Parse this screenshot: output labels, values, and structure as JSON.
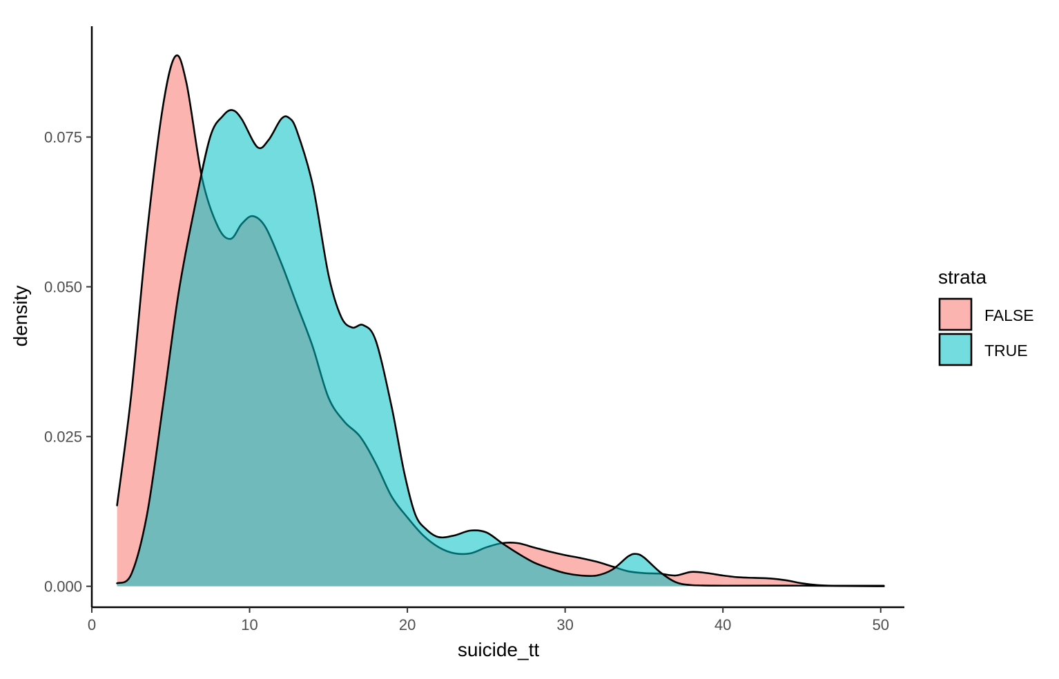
{
  "chart_data": {
    "type": "area",
    "subtype": "density",
    "xlabel": "suicide_tt",
    "ylabel": "density",
    "xlim": [
      0,
      51.5
    ],
    "ylim": [
      -0.0035,
      0.0935
    ],
    "x_ticks": [
      0,
      10,
      20,
      30,
      40,
      50
    ],
    "x_tick_labels": [
      "0",
      "10",
      "20",
      "30",
      "40",
      "50"
    ],
    "y_ticks": [
      0,
      0.025,
      0.05,
      0.075
    ],
    "y_tick_labels": [
      "0.000",
      "0.025",
      "0.050",
      "0.075"
    ],
    "grid": false,
    "legend": {
      "title": "strata",
      "position": "right"
    },
    "series": [
      {
        "name": "FALSE",
        "color": "#F8766D",
        "points": [
          [
            1.6,
            0.0135
          ],
          [
            2.5,
            0.032
          ],
          [
            3.5,
            0.059
          ],
          [
            4.5,
            0.08
          ],
          [
            5.3,
            0.0885
          ],
          [
            6.0,
            0.084
          ],
          [
            7.0,
            0.068
          ],
          [
            8.0,
            0.06
          ],
          [
            8.8,
            0.058
          ],
          [
            9.5,
            0.0605
          ],
          [
            10.2,
            0.0618
          ],
          [
            11.0,
            0.06
          ],
          [
            12.0,
            0.054
          ],
          [
            13.0,
            0.047
          ],
          [
            14.0,
            0.04
          ],
          [
            15.0,
            0.0315
          ],
          [
            16.0,
            0.0275
          ],
          [
            17.0,
            0.025
          ],
          [
            18.0,
            0.0205
          ],
          [
            19.0,
            0.015
          ],
          [
            20.0,
            0.0115
          ],
          [
            21.0,
            0.0085
          ],
          [
            22.0,
            0.0065
          ],
          [
            23.0,
            0.0055
          ],
          [
            24.0,
            0.0055
          ],
          [
            25.0,
            0.0065
          ],
          [
            26.0,
            0.0072
          ],
          [
            27.0,
            0.0072
          ],
          [
            28.0,
            0.0065
          ],
          [
            29.0,
            0.0058
          ],
          [
            30.0,
            0.0052
          ],
          [
            31.0,
            0.0047
          ],
          [
            32.0,
            0.0041
          ],
          [
            33.0,
            0.0033
          ],
          [
            34.0,
            0.0025
          ],
          [
            35.0,
            0.0022
          ],
          [
            36.0,
            0.0021
          ],
          [
            37.0,
            0.0018
          ],
          [
            38.0,
            0.0024
          ],
          [
            39.0,
            0.0022
          ],
          [
            40.0,
            0.0018
          ],
          [
            41.0,
            0.0015
          ],
          [
            42.0,
            0.0014
          ],
          [
            43.0,
            0.0013
          ],
          [
            44.0,
            0.001
          ],
          [
            45.0,
            0.0005
          ],
          [
            46.0,
            0.0002
          ],
          [
            47.0,
            0.0001
          ],
          [
            48.0,
            0.0001
          ],
          [
            50.2,
            0.0001
          ]
        ]
      },
      {
        "name": "TRUE",
        "color": "#00BFC4",
        "points": [
          [
            1.6,
            0.0005
          ],
          [
            2.5,
            0.002
          ],
          [
            3.5,
            0.012
          ],
          [
            4.5,
            0.03
          ],
          [
            5.5,
            0.049
          ],
          [
            6.5,
            0.063
          ],
          [
            7.5,
            0.075
          ],
          [
            8.3,
            0.0785
          ],
          [
            8.9,
            0.0795
          ],
          [
            9.5,
            0.078
          ],
          [
            10.5,
            0.0733
          ],
          [
            11.2,
            0.0745
          ],
          [
            12.0,
            0.078
          ],
          [
            12.5,
            0.0782
          ],
          [
            13.0,
            0.076
          ],
          [
            14.0,
            0.067
          ],
          [
            15.0,
            0.052
          ],
          [
            15.8,
            0.045
          ],
          [
            16.5,
            0.0432
          ],
          [
            17.2,
            0.0436
          ],
          [
            18.0,
            0.041
          ],
          [
            19.0,
            0.03
          ],
          [
            19.8,
            0.019
          ],
          [
            20.5,
            0.012
          ],
          [
            21.2,
            0.0095
          ],
          [
            22.0,
            0.0082
          ],
          [
            23.0,
            0.0085
          ],
          [
            24.0,
            0.0093
          ],
          [
            25.0,
            0.009
          ],
          [
            26.0,
            0.0072
          ],
          [
            27.0,
            0.0055
          ],
          [
            28.0,
            0.004
          ],
          [
            29.0,
            0.003
          ],
          [
            30.0,
            0.0022
          ],
          [
            31.0,
            0.0018
          ],
          [
            32.0,
            0.0018
          ],
          [
            33.0,
            0.0028
          ],
          [
            34.0,
            0.005
          ],
          [
            34.5,
            0.0054
          ],
          [
            35.0,
            0.0048
          ],
          [
            36.0,
            0.0024
          ],
          [
            37.0,
            0.0007
          ],
          [
            38.0,
            0.0002
          ],
          [
            40.0,
            0.0001
          ],
          [
            45.0,
            0.0001
          ],
          [
            50.2,
            0.0
          ]
        ]
      }
    ]
  }
}
